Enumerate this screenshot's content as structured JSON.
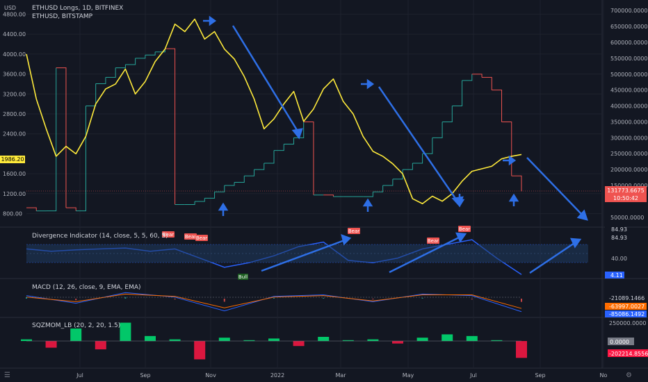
{
  "header": {
    "main_title": "ETHUSD Longs, 1D, BITFINEX",
    "sub_title": "ETHUSD, BITSTAMP",
    "currency": "USD"
  },
  "colors": {
    "background": "#131722",
    "price_line": "#ffeb3b",
    "longs_green": "#26a69a",
    "longs_red": "#ef5350",
    "divergence_line": "#2962ff",
    "annotation_blue": "#2e6fe6",
    "macd_line": "#2962ff",
    "signal_line": "#ff6d00",
    "sqz_green": "#00e676",
    "sqz_red": "#ff1744",
    "bear_label": "#ef5350",
    "bull_label": "#1b5e20"
  },
  "panels": {
    "divergence": {
      "title": "Divergence Indicator (14, close, 5, 5, 60, 5)"
    },
    "macd": {
      "title": "MACD (12, 26, close, 9, EMA, EMA)"
    },
    "sqzmom": {
      "title": "SQZMOM_LB (20, 2, 20, 1.5)"
    }
  },
  "price_labels": {
    "current_price": "1986.20",
    "longs_value": "131773.6675",
    "countdown": "10:50:42",
    "div_value_top": "84.93",
    "div_value_top2": "84.93",
    "div_value_mid": "40.00",
    "div_value_current": "4.11",
    "macd_value_1": "-21089.1466",
    "macd_value_2": "-63997.0027",
    "macd_value_3": "-85086.1492",
    "sqz_top": "250000.0000",
    "sqz_zero": "0.0000",
    "sqz_current": "-202214.8556"
  },
  "signal_labels": {
    "bear": "Bear",
    "bull": "Bull"
  },
  "footer": {
    "logo_glyph": "☰"
  },
  "chart_data": [
    {
      "type": "line",
      "name": "main-price-chart",
      "title": "ETHUSD Longs, 1D, BITFINEX",
      "x_ticks": [
        "Jul",
        "Sep",
        "Nov",
        "2022",
        "Mar",
        "May",
        "Jul",
        "Sep",
        "No"
      ],
      "y_left_ticks": [
        4800,
        4400,
        4000,
        3600,
        3200,
        2800,
        2400,
        1600,
        1200,
        800
      ],
      "y_left_range": [
        600,
        5000
      ],
      "y_right_ticks": [
        700000,
        650000,
        600000,
        550000,
        500000,
        450000,
        400000,
        350000,
        300000,
        250000,
        200000,
        150000,
        50000
      ],
      "y_right_range": [
        30000,
        720000
      ],
      "series": [
        {
          "name": "ETHUSD, BITSTAMP",
          "x": [
            0,
            2,
            4,
            6,
            8,
            10,
            12,
            14,
            16,
            18,
            20,
            22,
            24,
            26,
            28,
            30,
            32,
            34,
            36,
            38,
            40,
            42,
            44,
            46,
            48,
            50,
            52,
            54,
            56,
            58,
            60,
            62,
            64,
            66,
            68,
            70,
            72,
            74,
            76,
            78,
            80,
            82,
            84,
            86,
            88,
            90,
            92,
            94,
            96,
            98,
            100
          ],
          "values": [
            4000,
            3100,
            2500,
            1950,
            2150,
            2000,
            2350,
            3000,
            3300,
            3400,
            3700,
            3200,
            3450,
            3850,
            4100,
            4600,
            4450,
            4700,
            4300,
            4450,
            4100,
            3900,
            3550,
            3100,
            2500,
            2700,
            3000,
            3250,
            2650,
            2900,
            3300,
            3500,
            3050,
            2800,
            2350,
            2050,
            1950,
            1800,
            1600,
            1100,
            1000,
            1150,
            1050,
            1200,
            1450,
            1650,
            1700,
            1750,
            1900,
            1950,
            1986
          ]
        },
        {
          "name": "ETHUSD Longs",
          "x": [
            0,
            2,
            4,
            6,
            8,
            10,
            12,
            14,
            16,
            18,
            20,
            22,
            24,
            26,
            28,
            30,
            32,
            34,
            36,
            38,
            40,
            42,
            44,
            46,
            48,
            50,
            52,
            54,
            56,
            58,
            60,
            62,
            64,
            66,
            68,
            70,
            72,
            74,
            76,
            78,
            80,
            82,
            84,
            86,
            88,
            90,
            92,
            94,
            96,
            98,
            100
          ],
          "values": [
            80000,
            70000,
            70000,
            520000,
            80000,
            70000,
            400000,
            470000,
            490000,
            520000,
            530000,
            550000,
            560000,
            570000,
            580000,
            90000,
            90000,
            100000,
            110000,
            130000,
            150000,
            160000,
            180000,
            200000,
            220000,
            260000,
            280000,
            300000,
            350000,
            120000,
            120000,
            115000,
            115000,
            115000,
            115000,
            130000,
            150000,
            170000,
            200000,
            220000,
            250000,
            300000,
            350000,
            400000,
            480000,
            500000,
            490000,
            450000,
            350000,
            180000,
            131773
          ]
        }
      ]
    },
    {
      "type": "line",
      "name": "divergence-indicator",
      "title": "Divergence Indicator (14, close, 5, 5, 60, 5)",
      "y_ticks": [
        84.93,
        40.0
      ],
      "y_range": [
        0,
        100
      ],
      "x": [
        0,
        5,
        10,
        15,
        20,
        25,
        30,
        35,
        40,
        45,
        50,
        55,
        60,
        65,
        70,
        75,
        80,
        85,
        90,
        95,
        100
      ],
      "values": [
        60,
        55,
        58,
        60,
        62,
        55,
        60,
        40,
        20,
        30,
        45,
        65,
        75,
        35,
        30,
        40,
        60,
        70,
        80,
        40,
        4.11
      ]
    },
    {
      "type": "line",
      "name": "macd",
      "title": "MACD (12, 26, close, 9, EMA, EMA)",
      "series": [
        {
          "name": "MACD",
          "x": [
            0,
            10,
            20,
            30,
            40,
            50,
            60,
            70,
            80,
            90,
            100
          ],
          "values": [
            20000,
            -30000,
            40000,
            10000,
            -80000,
            15000,
            25000,
            -20000,
            30000,
            20000,
            -85086
          ]
        },
        {
          "name": "Signal",
          "x": [
            0,
            10,
            20,
            30,
            40,
            50,
            60,
            70,
            80,
            90,
            100
          ],
          "values": [
            10000,
            -20000,
            30000,
            15000,
            -60000,
            10000,
            20000,
            -15000,
            25000,
            25000,
            -63997
          ]
        }
      ]
    },
    {
      "type": "bar",
      "name": "sqzmom",
      "title": "SQZMOM_LB (20, 2, 20, 1.5)",
      "x": [
        0,
        5,
        10,
        15,
        20,
        25,
        30,
        35,
        40,
        45,
        50,
        55,
        60,
        65,
        70,
        75,
        80,
        85,
        90,
        95,
        100
      ],
      "values": [
        20000,
        -80000,
        150000,
        -100000,
        220000,
        60000,
        20000,
        -220000,
        40000,
        10000,
        30000,
        -60000,
        50000,
        10000,
        20000,
        -30000,
        40000,
        80000,
        60000,
        10000,
        -202214
      ]
    }
  ]
}
